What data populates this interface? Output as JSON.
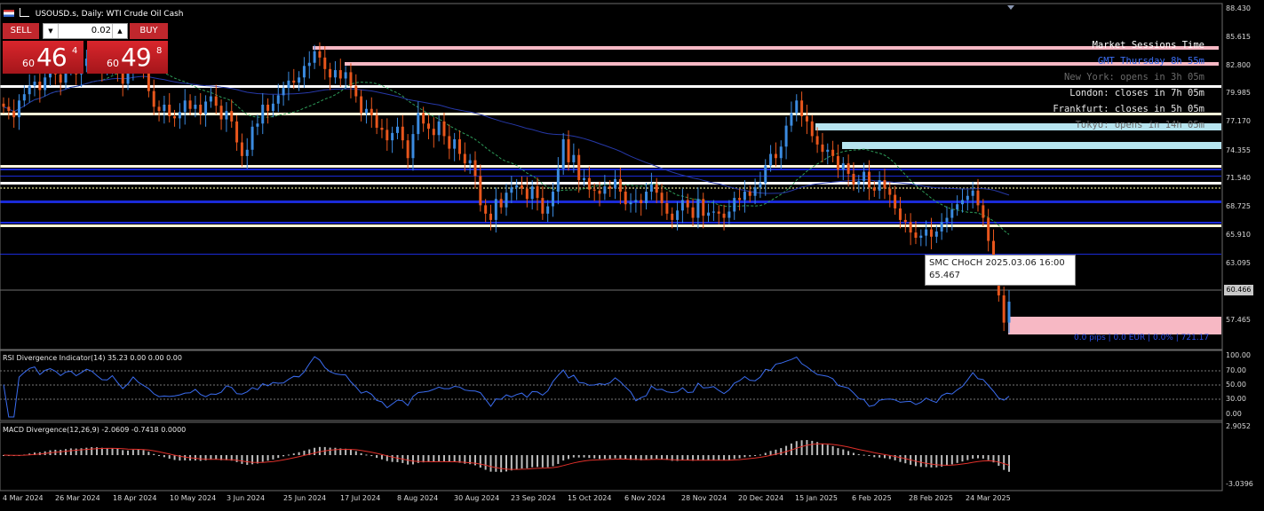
{
  "header": {
    "symbol_title": "USOUSD.s, Daily:  WTI Crude Oil Cash",
    "icons": [
      "flag-icon",
      "chart-icon"
    ]
  },
  "trade_panel": {
    "sell_label": "SELL",
    "buy_label": "BUY",
    "lot_value": "0.02",
    "sell_price": {
      "small": "60",
      "big": "46",
      "sup": "4"
    },
    "buy_price": {
      "small": "60",
      "big": "49",
      "sup": "8"
    }
  },
  "sessions": {
    "title": "Market Sessions Time",
    "gmt": "GMT Thursday 8h 55m",
    "new_york": "New York: opens in 3h 05m",
    "london": "London: closes in 7h 05m",
    "frankfurt": "Frankfurt: closes in 5h 05m",
    "tokyo": "Tokyo: opens in 14h 05m"
  },
  "smc": {
    "line1": "SMC CHoCH 2025.03.06 16:00",
    "line2": "65.467"
  },
  "pips_label": "0.0 pips | 0.0 EUR | 0.0% | 721.17",
  "current_price_tag": "60.466",
  "price_axis": [
    "88.430",
    "85.615",
    "82.800",
    "79.985",
    "77.170",
    "74.355",
    "71.540",
    "68.725",
    "65.910",
    "63.095",
    "57.465"
  ],
  "rsi": {
    "title": "RSI Divergence Indicator(14) 35.23 0.00 0.00 0.00",
    "axis": [
      "100.00",
      "70.00",
      "50.00",
      "30.00",
      "0.00"
    ]
  },
  "macd": {
    "title": "MACD Divergence(12,26,9) -2.0609 -0.7418 0.0000",
    "axis": [
      "2.9052",
      "-3.0396"
    ]
  },
  "dates": [
    "4 Mar 2024",
    "26 Mar 2024",
    "18 Apr 2024",
    "10 May 2024",
    "3 Jun 2024",
    "25 Jun 2024",
    "17 Jul 2024",
    "8 Aug 2024",
    "30 Aug 2024",
    "23 Sep 2024",
    "15 Oct 2024",
    "6 Nov 2024",
    "28 Nov 2024",
    "20 Dec 2024",
    "15 Jan 2025",
    "6 Feb 2025",
    "28 Feb 2025",
    "24 Mar 2025"
  ],
  "colors": {
    "bull": "#3b8be0",
    "bear": "#e8561c",
    "pink": "#f7b8c4",
    "lightblue": "#b6e4ef",
    "blue": "#1a2ad8"
  },
  "chart_data": {
    "type": "candlestick",
    "title": "USOUSD.s, Daily: WTI Crude Oil Cash",
    "ylim": [
      56,
      88.43
    ],
    "closes": [
      79.0,
      78.6,
      78.0,
      79.6,
      80.2,
      81.0,
      81.4,
      80.6,
      81.8,
      82.5,
      82.1,
      81.3,
      82.8,
      83.2,
      82.1,
      82.9,
      83.6,
      84.0,
      83.2,
      82.6,
      82.9,
      83.4,
      82.4,
      81.2,
      82.3,
      84.2,
      83.6,
      82.9,
      80.5,
      79.0,
      78.6,
      79.2,
      78.1,
      77.9,
      78.5,
      79.6,
      78.8,
      79.2,
      78.3,
      79.5,
      80.0,
      79.1,
      77.8,
      78.6,
      77.6,
      75.6,
      74.3,
      74.9,
      77.1,
      77.4,
      79.2,
      78.6,
      79.3,
      80.1,
      80.8,
      81.5,
      81.3,
      81.8,
      82.9,
      83.2,
      84.3,
      83.7,
      82.6,
      81.8,
      82.5,
      81.7,
      82.3,
      81.0,
      80.0,
      78.4,
      78.8,
      78.2,
      77.0,
      76.8,
      75.8,
      76.5,
      77.1,
      75.8,
      74.1,
      76.4,
      78.4,
      77.4,
      76.9,
      76.3,
      77.6,
      76.2,
      75.0,
      75.9,
      74.5,
      73.6,
      73.9,
      72.4,
      69.6,
      68.8,
      68.2,
      70.2,
      69.4,
      70.8,
      71.3,
      71.5,
      71.2,
      70.2,
      71.4,
      70.3,
      68.8,
      69.5,
      70.9,
      73.1,
      75.9,
      73.7,
      74.4,
      72.0,
      72.2,
      71.1,
      71.0,
      70.7,
      71.4,
      71.2,
      72.1,
      70.9,
      69.7,
      69.9,
      70.1,
      69.8,
      70.9,
      71.6,
      70.8,
      69.8,
      68.8,
      68.2,
      69.1,
      70.1,
      69.4,
      68.4,
      70.2,
      68.6,
      68.9,
      69.0,
      68.8,
      68.4,
      69.0,
      70.3,
      70.1,
      70.9,
      70.5,
      71.3,
      71.7,
      73.4,
      74.5,
      74.1,
      75.2,
      77.2,
      78.4,
      79.6,
      78.1,
      77.6,
      76.2,
      75.4,
      74.7,
      74.9,
      74.3,
      73.0,
      73.6,
      72.6,
      71.6,
      71.9,
      72.8,
      71.3,
      71.0,
      72.0,
      71.2,
      70.6,
      69.3,
      68.2,
      68.0,
      67.0,
      66.5,
      66.7,
      67.3,
      66.6,
      67.1,
      68.0,
      68.4,
      69.2,
      69.7,
      70.1,
      70.5,
      71.0,
      69.6,
      68.4,
      66.2,
      64.1,
      61.0,
      58.4,
      60.4
    ]
  }
}
